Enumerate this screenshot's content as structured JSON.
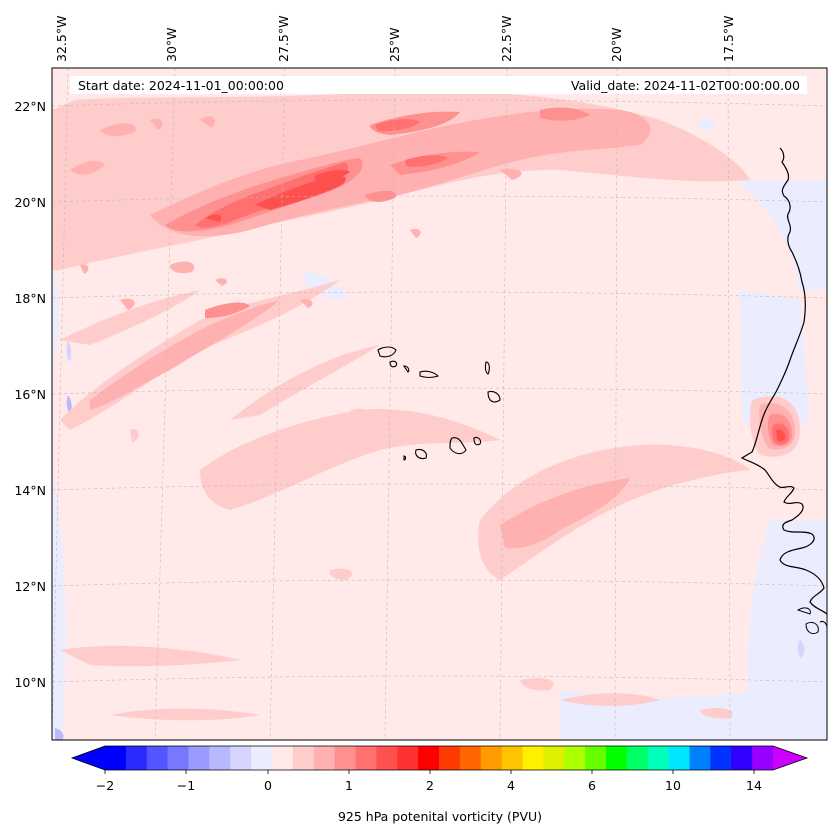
{
  "header": {
    "start_date": "Start date: 2024-11-01_00:00:00",
    "valid_date": "Valid_date: 2024-11-02T00:00:00.00"
  },
  "map": {
    "region": "Eastern tropical Atlantic – Cape Verde and West African coast",
    "lon_labels": [
      "32.5°W",
      "30°W",
      "27.5°W",
      "25°W",
      "22.5°W",
      "20°W",
      "17.5°W"
    ],
    "lat_labels": [
      "22°N",
      "20°N",
      "18°N",
      "16°N",
      "14°N",
      "12°N",
      "10°N"
    ],
    "gridlines": true
  },
  "colorbar": {
    "label": "925 hPa potenital vorticity (PVU)",
    "tick_labels": [
      "−2",
      "−1",
      "0",
      "1",
      "2",
      "4",
      "6",
      "10",
      "14"
    ],
    "extend": "both",
    "colors": [
      "#0000ff",
      "#2a2aff",
      "#5555ff",
      "#7878ff",
      "#9a9aff",
      "#b8b8ff",
      "#d4d4ff",
      "#ececff",
      "#ffe9e9",
      "#ffcccc",
      "#ffb0b0",
      "#ff9090",
      "#ff7070",
      "#ff5050",
      "#ff3030",
      "#ff0000",
      "#ff3a00",
      "#ff6600",
      "#ff9a00",
      "#ffc400",
      "#fff000",
      "#ddf000",
      "#aaff00",
      "#66ff00",
      "#00ff00",
      "#00ff66",
      "#00ffbb",
      "#00e6ff",
      "#0080ff",
      "#0033ff",
      "#3300ff",
      "#9900ff"
    ],
    "extend_min_color": "#0000ff",
    "extend_max_color": "#cc00ff"
  },
  "chart_data": {
    "type": "filled-contour map",
    "variable": "925 hPa potential vorticity",
    "units": "PVU",
    "levels": [
      -2,
      -1.75,
      -1.5,
      -1.25,
      -1,
      -0.75,
      -0.5,
      -0.25,
      0,
      0.25,
      0.5,
      0.75,
      1,
      1.25,
      1.5,
      1.75,
      2,
      2.5,
      3,
      3.5,
      4,
      4.5,
      5,
      5.5,
      6,
      7,
      8,
      9,
      10,
      11,
      12,
      13,
      14
    ],
    "lon_range": [
      -33,
      -15.5
    ],
    "lat_range": [
      9,
      22.8
    ],
    "features": [
      {
        "name": "PV maximum band",
        "lat": 20.3,
        "lon": -27,
        "approx_pvu": 1.5
      },
      {
        "name": "coastal maximum near Dakar",
        "lat": 15.1,
        "lon": -16.8,
        "approx_pvu": 1.5
      },
      {
        "name": "southeast band",
        "lat": 13.7,
        "lon": -21,
        "approx_pvu": 0.5
      }
    ]
  }
}
